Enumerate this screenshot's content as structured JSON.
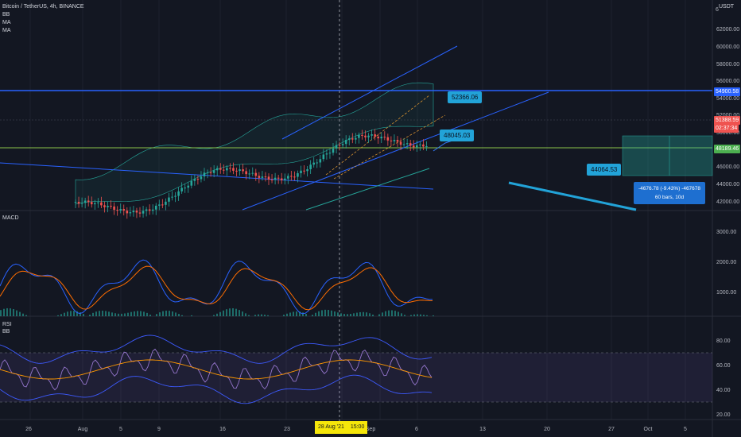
{
  "header": {
    "symbol": "Bitcoin / TetherUS, 4h, BINANCE",
    "indicators": [
      "BB",
      "MA",
      "MA"
    ]
  },
  "currency": "USDT",
  "price_axis": {
    "main": [
      "62000.00",
      "60000.00",
      "58000.00",
      "56000.00",
      "54000.00",
      "52000.00",
      "50000.00",
      "48000.00",
      "46000.00",
      "44000.00",
      "42000.00"
    ],
    "macd": [
      "3000.00",
      "2000.00",
      "1000.00"
    ],
    "rsi": [
      "80.00",
      "60.00",
      "40.00",
      "20.00"
    ],
    "top_digit": "6"
  },
  "price_tags": {
    "resistance": "54900.58",
    "last_price": "51388.59",
    "countdown": "02:37:34",
    "support": "48189.46"
  },
  "callouts": {
    "upper": "52366.06",
    "middle": "48045.03",
    "lower": "44064.53"
  },
  "measure": {
    "line1": "-4676.78 (-9.43%) -467678",
    "line2": "60 bars, 10d"
  },
  "panes": {
    "macd_label": "MACD",
    "rsi_label": "RSI",
    "rsi_bb_label": "BB"
  },
  "time_axis": {
    "labels": [
      "26",
      "Aug",
      "5",
      "9",
      "16",
      "23",
      "Sep",
      "6",
      "13",
      "20",
      "27",
      "Oct",
      "5"
    ],
    "cursor_date": "28 Aug '21",
    "cursor_time": "15:00"
  },
  "colors": {
    "background": "#131722",
    "resistance_line": "#2962ff",
    "support_line": "#8bc34a",
    "callout": "#22a3d8",
    "last_price": "#ef5350",
    "support_tag": "#4caf50",
    "macd_line": "#2962ff",
    "signal_line": "#ff6d00",
    "rsi_line": "#7e57c2"
  }
}
